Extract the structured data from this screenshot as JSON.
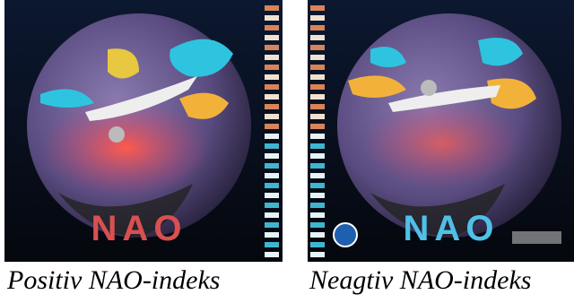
{
  "panels": [
    {
      "logo": "NAO",
      "caption": "Positiv NAO-indeks"
    },
    {
      "logo": "NAO",
      "caption": "Neagtiv NAO-indeks"
    }
  ]
}
